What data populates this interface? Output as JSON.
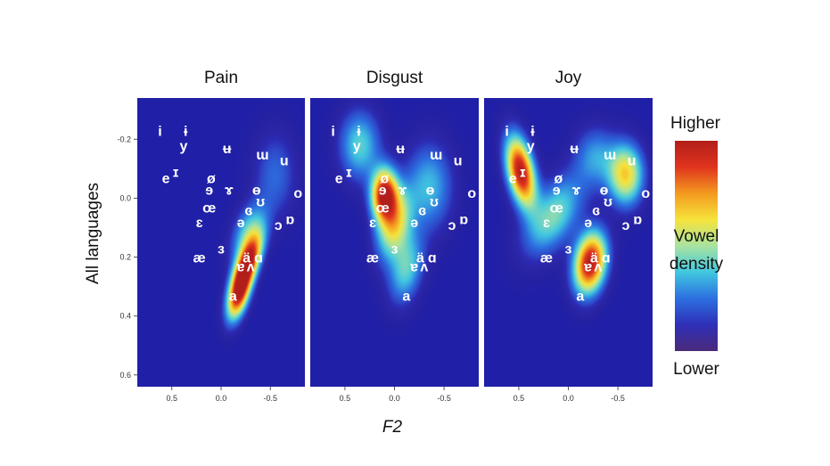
{
  "chart_data": {
    "type": "heatmap",
    "xlabel": "F2",
    "ylabel": "All languages",
    "x_ticks": [
      "0.5",
      "0.0",
      "-0.5"
    ],
    "y_ticks": [
      "-0.2",
      "0.0",
      "0.2",
      "0.4",
      "0.6"
    ],
    "xlim": [
      0.85,
      -0.85
    ],
    "ylim": [
      -0.34,
      0.64
    ],
    "x_reversed": true,
    "y_reversed": true,
    "grid": false,
    "legend": {
      "title": "Vowel density",
      "high_label": "Higher",
      "low_label": "Lower",
      "mid_label_line1": "Vowel",
      "mid_label_line2": "density",
      "placement": "right"
    },
    "colorscale": [
      "#4a2a7a",
      "#2f2fb8",
      "#2c6fe0",
      "#41c7e0",
      "#a8e3a0",
      "#f6e33b",
      "#f39a1f",
      "#e0341e",
      "#b21e1a"
    ],
    "background_color": "#1f1fa8",
    "vowels": [
      {
        "label": "i",
        "x": 0.62,
        "y": -0.23
      },
      {
        "label": "ɨ",
        "x": 0.36,
        "y": -0.23
      },
      {
        "label": "y",
        "x": 0.38,
        "y": -0.18
      },
      {
        "label": "ʉ",
        "x": -0.06,
        "y": -0.17
      },
      {
        "label": "ɯ",
        "x": -0.42,
        "y": -0.15
      },
      {
        "label": "u",
        "x": -0.64,
        "y": -0.13
      },
      {
        "label": "e",
        "x": 0.56,
        "y": -0.07
      },
      {
        "label": "ɪ",
        "x": 0.46,
        "y": -0.09
      },
      {
        "label": "ø",
        "x": 0.1,
        "y": -0.07
      },
      {
        "label": "ɘ",
        "x": 0.12,
        "y": -0.03
      },
      {
        "label": "ɤ",
        "x": -0.08,
        "y": -0.03
      },
      {
        "label": "ɵ",
        "x": -0.36,
        "y": -0.03
      },
      {
        "label": "o",
        "x": -0.78,
        "y": -0.02
      },
      {
        "label": "ʊ",
        "x": -0.4,
        "y": 0.01
      },
      {
        "label": "œ",
        "x": 0.12,
        "y": 0.03
      },
      {
        "label": "ɞ",
        "x": -0.28,
        "y": 0.04
      },
      {
        "label": "ɛ",
        "x": 0.22,
        "y": 0.08
      },
      {
        "label": "ə",
        "x": -0.2,
        "y": 0.08
      },
      {
        "label": "ɒ",
        "x": -0.7,
        "y": 0.07
      },
      {
        "label": "ɔ",
        "x": -0.58,
        "y": 0.09
      },
      {
        "label": "ɜ",
        "x": 0.0,
        "y": 0.17
      },
      {
        "label": "æ",
        "x": 0.22,
        "y": 0.2
      },
      {
        "label": "ä",
        "x": -0.26,
        "y": 0.2
      },
      {
        "label": "ɑ",
        "x": -0.38,
        "y": 0.2
      },
      {
        "label": "ɐ",
        "x": -0.2,
        "y": 0.23
      },
      {
        "label": "ʌ",
        "x": -0.3,
        "y": 0.23
      },
      {
        "label": "a",
        "x": -0.12,
        "y": 0.33
      }
    ],
    "panels": [
      {
        "title": "Pain",
        "density_peaks": [
          {
            "x": -0.26,
            "y": 0.23,
            "sx": 0.1,
            "sy": 0.07,
            "w": 1.0,
            "rho": 0.65
          },
          {
            "x": -0.18,
            "y": 0.33,
            "sx": 0.08,
            "sy": 0.06,
            "w": 0.75,
            "rho": 0.5
          },
          {
            "x": -0.28,
            "y": 0.12,
            "sx": 0.12,
            "sy": 0.07,
            "w": 0.35,
            "rho": 0.4
          },
          {
            "x": -0.55,
            "y": -0.08,
            "sx": 0.15,
            "sy": 0.1,
            "w": 0.18,
            "rho": 0.0
          }
        ]
      },
      {
        "title": "Disgust",
        "density_peaks": [
          {
            "x": 0.1,
            "y": -0.01,
            "sx": 0.09,
            "sy": 0.06,
            "w": 1.0,
            "rho": 0.0
          },
          {
            "x": 0.0,
            "y": 0.09,
            "sx": 0.12,
            "sy": 0.08,
            "w": 0.55,
            "rho": 0.3
          },
          {
            "x": 0.35,
            "y": -0.18,
            "sx": 0.14,
            "sy": 0.08,
            "w": 0.35,
            "rho": 0.0
          },
          {
            "x": -0.35,
            "y": -0.04,
            "sx": 0.16,
            "sy": 0.1,
            "w": 0.3,
            "rho": 0.0
          },
          {
            "x": -0.12,
            "y": 0.24,
            "sx": 0.12,
            "sy": 0.08,
            "w": 0.35,
            "rho": 0.3
          }
        ]
      },
      {
        "title": "Joy",
        "density_peaks": [
          {
            "x": 0.48,
            "y": -0.09,
            "sx": 0.1,
            "sy": 0.08,
            "w": 1.0,
            "rho": -0.4
          },
          {
            "x": -0.22,
            "y": 0.22,
            "sx": 0.11,
            "sy": 0.07,
            "w": 1.0,
            "rho": 0.2
          },
          {
            "x": 0.15,
            "y": 0.06,
            "sx": 0.2,
            "sy": 0.09,
            "w": 0.4,
            "rho": 0.5
          },
          {
            "x": -0.58,
            "y": -0.08,
            "sx": 0.12,
            "sy": 0.07,
            "w": 0.6,
            "rho": 0.0
          },
          {
            "x": -0.28,
            "y": -0.14,
            "sx": 0.15,
            "sy": 0.07,
            "w": 0.25,
            "rho": 0.0
          }
        ]
      }
    ]
  }
}
